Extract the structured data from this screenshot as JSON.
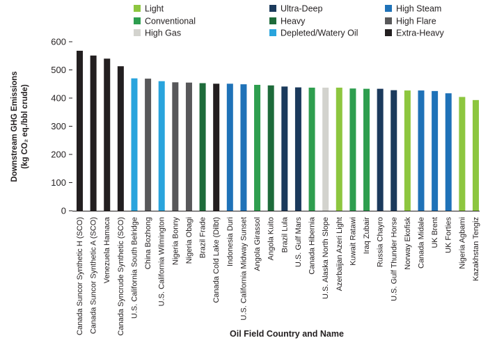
{
  "chart_data": {
    "type": "bar",
    "title": "",
    "xlabel": "Oil Field Country and Name",
    "ylabel_line1": "Downstream GHG Emissions",
    "ylabel_line2": "(kg CO₂ eq./bbl crude)",
    "ylim": [
      0,
      600
    ],
    "yticks": [
      "0",
      "100",
      "200",
      "300",
      "400",
      "500",
      "600"
    ],
    "grid": false,
    "legend_position": "top",
    "legend": [
      {
        "name": "Light",
        "color": "#8dc63f"
      },
      {
        "name": "Ultra-Deep",
        "color": "#1b3a5c"
      },
      {
        "name": "High Steam",
        "color": "#1f72b8"
      },
      {
        "name": "Conventional",
        "color": "#2e9e4f"
      },
      {
        "name": "Heavy",
        "color": "#1e6b3a"
      },
      {
        "name": "High Flare",
        "color": "#58585a"
      },
      {
        "name": "High Gas",
        "color": "#d3d3ce"
      },
      {
        "name": "Depleted/Watery Oil",
        "color": "#29a4dd"
      },
      {
        "name": "Extra-Heavy",
        "color": "#231f20"
      }
    ],
    "categories": [
      "Canada Suncor Synthetic H (SCO)",
      "Canada Suncor Synthetic A (SCO)",
      "Venezuela Hamaca",
      "Canada Syncrude Synthetic (SCO)",
      "U.S. California South Belridge",
      "China Bozhong",
      "U.S. California Wilmington",
      "Nigeria Bonny",
      "Nigeria Obagi",
      "Brazil Frade",
      "Canada Cold Lake (Dilbt)",
      "Indonesia Duri",
      "U.S. California Midway Sunset",
      "Angola Girassol",
      "Angola Kuito",
      "Brazil Lula",
      "U.S. Gulf Mars",
      "Canada Hibernia",
      "U.S. Alaska North Slope",
      "Azerbaijan Azeri Light",
      "Kuwait Ratawi",
      "Iraq Zubair",
      "Russia Chayro",
      "U.S. Gulf Thunder Horse",
      "Norway Ekofisk",
      "Canada Midale",
      "UK Brent",
      "UK Forties",
      "Nigeria Agbami",
      "Kazakhstan Tengiz"
    ],
    "values": [
      568,
      551,
      540,
      513,
      470,
      469,
      460,
      456,
      455,
      453,
      451,
      451,
      449,
      447,
      445,
      441,
      438,
      437,
      437,
      437,
      434,
      433,
      433,
      428,
      427,
      427,
      425,
      417,
      404,
      393
    ],
    "bar_types": [
      "Extra-Heavy",
      "Extra-Heavy",
      "Extra-Heavy",
      "Extra-Heavy",
      "Depleted/Watery Oil",
      "High Flare",
      "Depleted/Watery Oil",
      "High Flare",
      "High Flare",
      "Heavy",
      "Extra-Heavy",
      "High Steam",
      "High Steam",
      "Conventional",
      "Heavy",
      "Ultra-Deep",
      "Ultra-Deep",
      "Conventional",
      "High Gas",
      "Light",
      "Conventional",
      "Conventional",
      "Ultra-Deep",
      "Ultra-Deep",
      "Light",
      "High Steam",
      "High Steam",
      "High Steam",
      "Light",
      "Light"
    ]
  }
}
